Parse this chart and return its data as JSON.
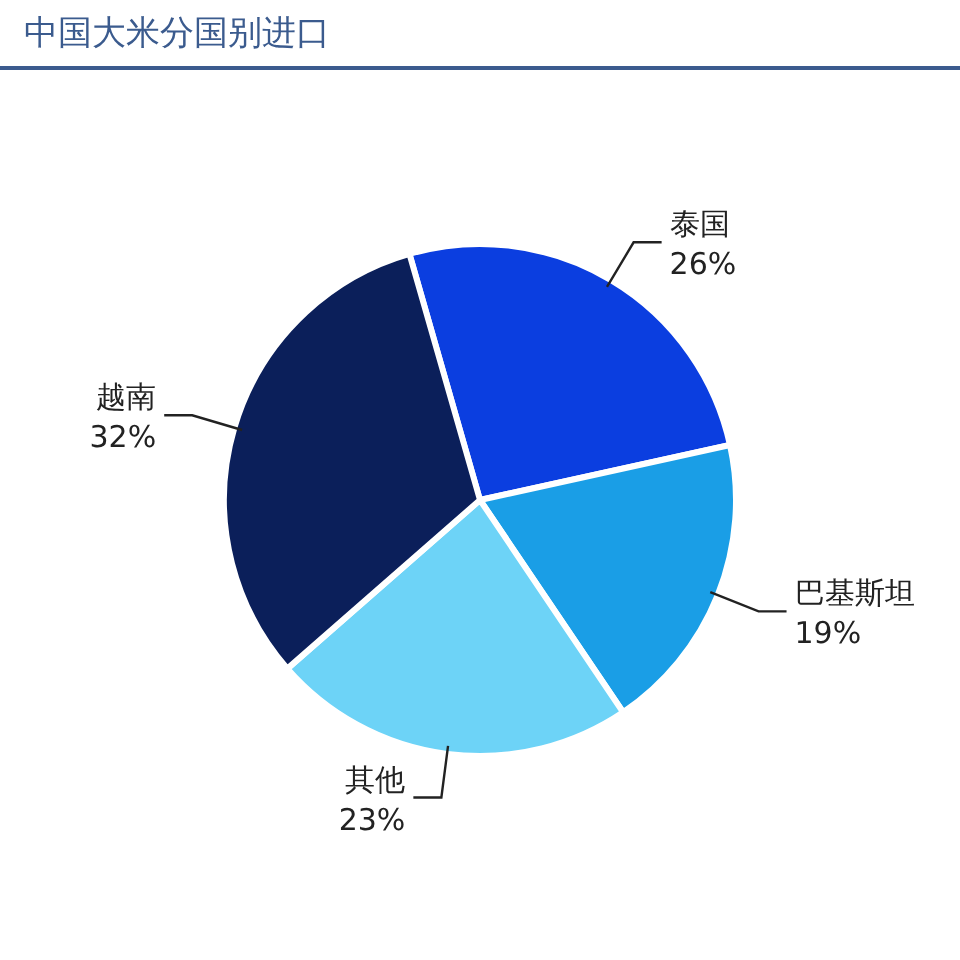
{
  "chart_data": {
    "type": "pie",
    "title": "中国大米分国别进口",
    "categories": [
      "泰国",
      "巴基斯坦",
      "其他",
      "越南"
    ],
    "values": [
      26,
      19,
      23,
      32
    ],
    "value_labels": [
      "26%",
      "19%",
      "23%",
      "32%"
    ],
    "colors": [
      "#0b3ee0",
      "#1a9ee6",
      "#6dd3f7",
      "#0b1f5a"
    ]
  }
}
